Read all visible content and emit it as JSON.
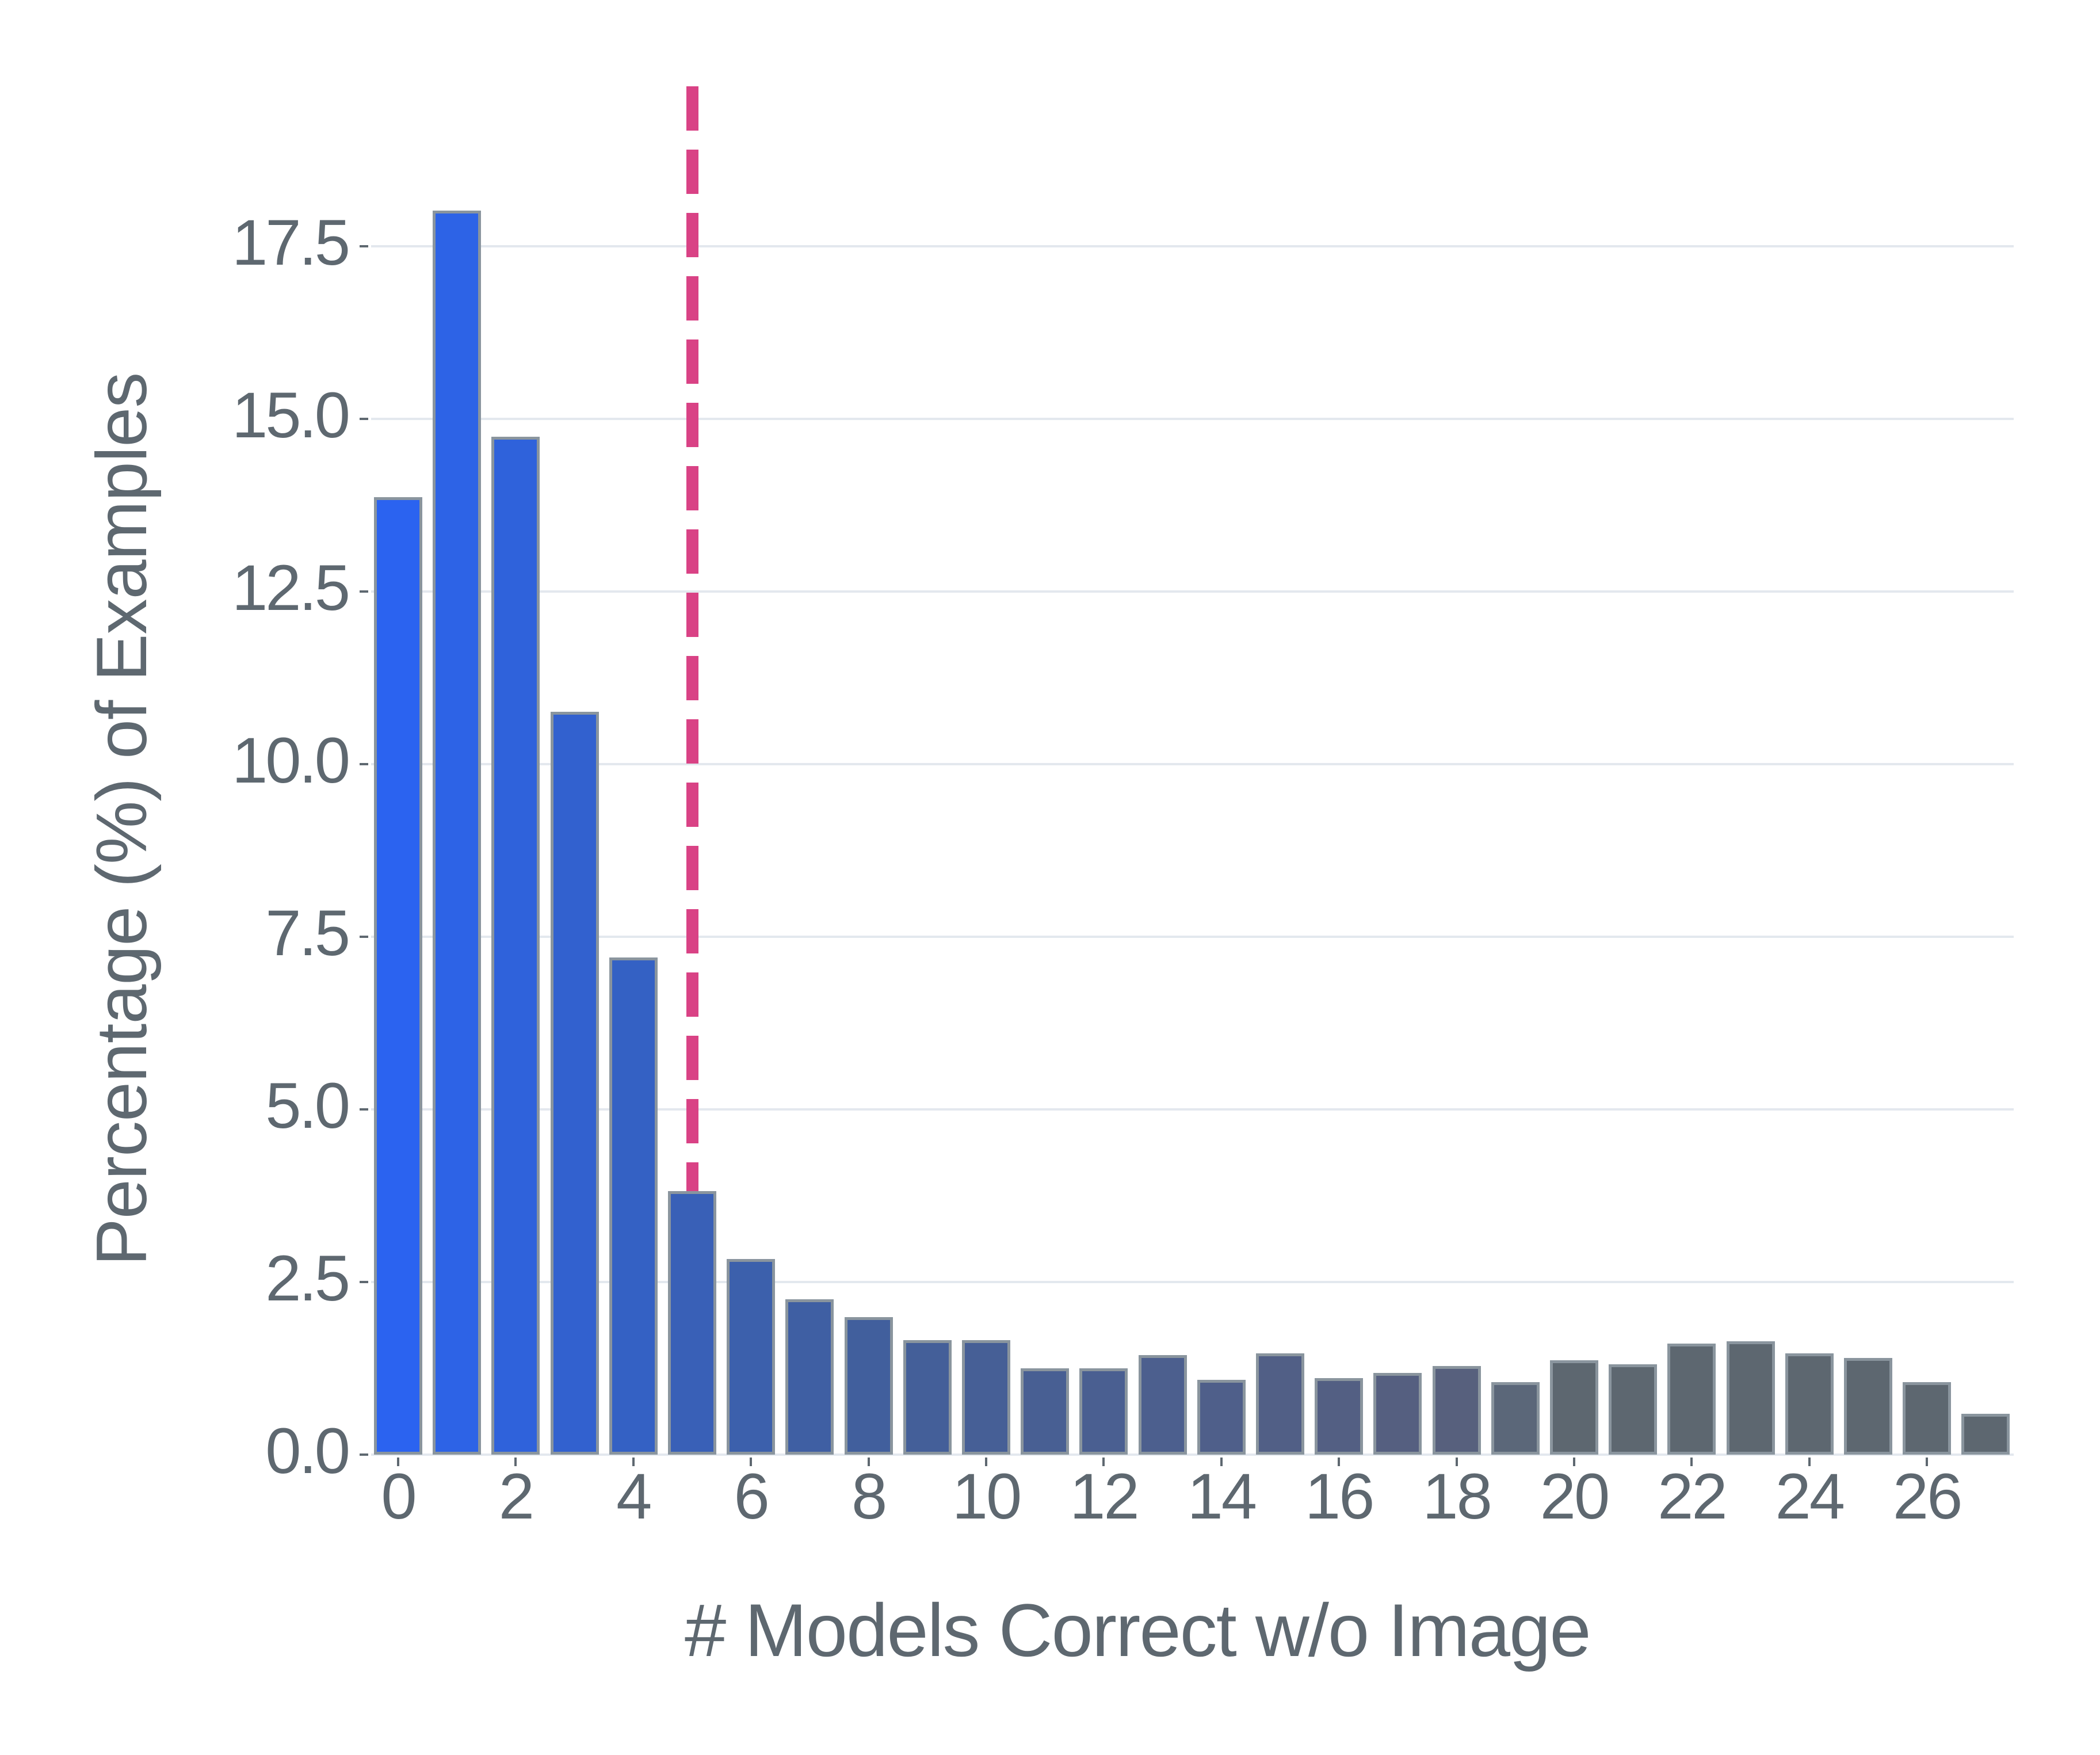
{
  "chart_data": {
    "type": "bar",
    "title": "",
    "xlabel": "# Models Correct w/o Image",
    "ylabel": "Percentage (%) of Examples",
    "categories": [
      0,
      1,
      2,
      3,
      4,
      5,
      6,
      7,
      8,
      9,
      10,
      11,
      12,
      13,
      14,
      15,
      16,
      17,
      18,
      19,
      20,
      21,
      22,
      23,
      24,
      25,
      26,
      27
    ],
    "values": [
      13.87,
      18.02,
      14.74,
      10.76,
      7.2,
      3.82,
      2.83,
      2.25,
      1.99,
      1.66,
      1.66,
      1.25,
      1.25,
      1.44,
      1.08,
      1.47,
      1.11,
      1.18,
      1.28,
      1.05,
      1.37,
      1.31,
      1.61,
      1.64,
      1.47,
      1.4,
      1.05,
      0.59
    ],
    "bar_colors": [
      "#2b63f0",
      "#2d63e6",
      "#2f62db",
      "#3261cf",
      "#3461c4",
      "#3960b7",
      "#3c60ac",
      "#3f5fa3",
      "#415f9d",
      "#445f99",
      "#465f96",
      "#485f93",
      "#4a5f91",
      "#4c5f8e",
      "#4f5f8a",
      "#515f86",
      "#535f83",
      "#555f80",
      "#57607d",
      "#5b6779",
      "#5d6770",
      "#5d6770",
      "#5d6770",
      "#5d6770",
      "#5d6770",
      "#5d6770",
      "#5d6770",
      "#5d6770"
    ],
    "bar_edge_color": "#8a959e",
    "xticks": [
      0,
      2,
      4,
      6,
      8,
      10,
      12,
      14,
      16,
      18,
      20,
      22,
      24,
      26
    ],
    "yticks": [
      "0.0",
      "2.5",
      "5.0",
      "7.5",
      "10.0",
      "12.5",
      "15.0",
      "17.5"
    ],
    "ytick_values": [
      0,
      2.5,
      5,
      7.5,
      10,
      12.5,
      15,
      17.5
    ],
    "ylim": [
      0,
      19.8
    ],
    "xlim": [
      -0.5,
      27.5
    ],
    "grid": "y",
    "legend": null,
    "annotations": [
      {
        "type": "vline",
        "x": 5,
        "style": "dashed",
        "color": "#d94285"
      }
    ]
  },
  "colors": {
    "text": "#5e6870",
    "grid": "#e3e8ee",
    "threshold_line": "#d94285"
  }
}
